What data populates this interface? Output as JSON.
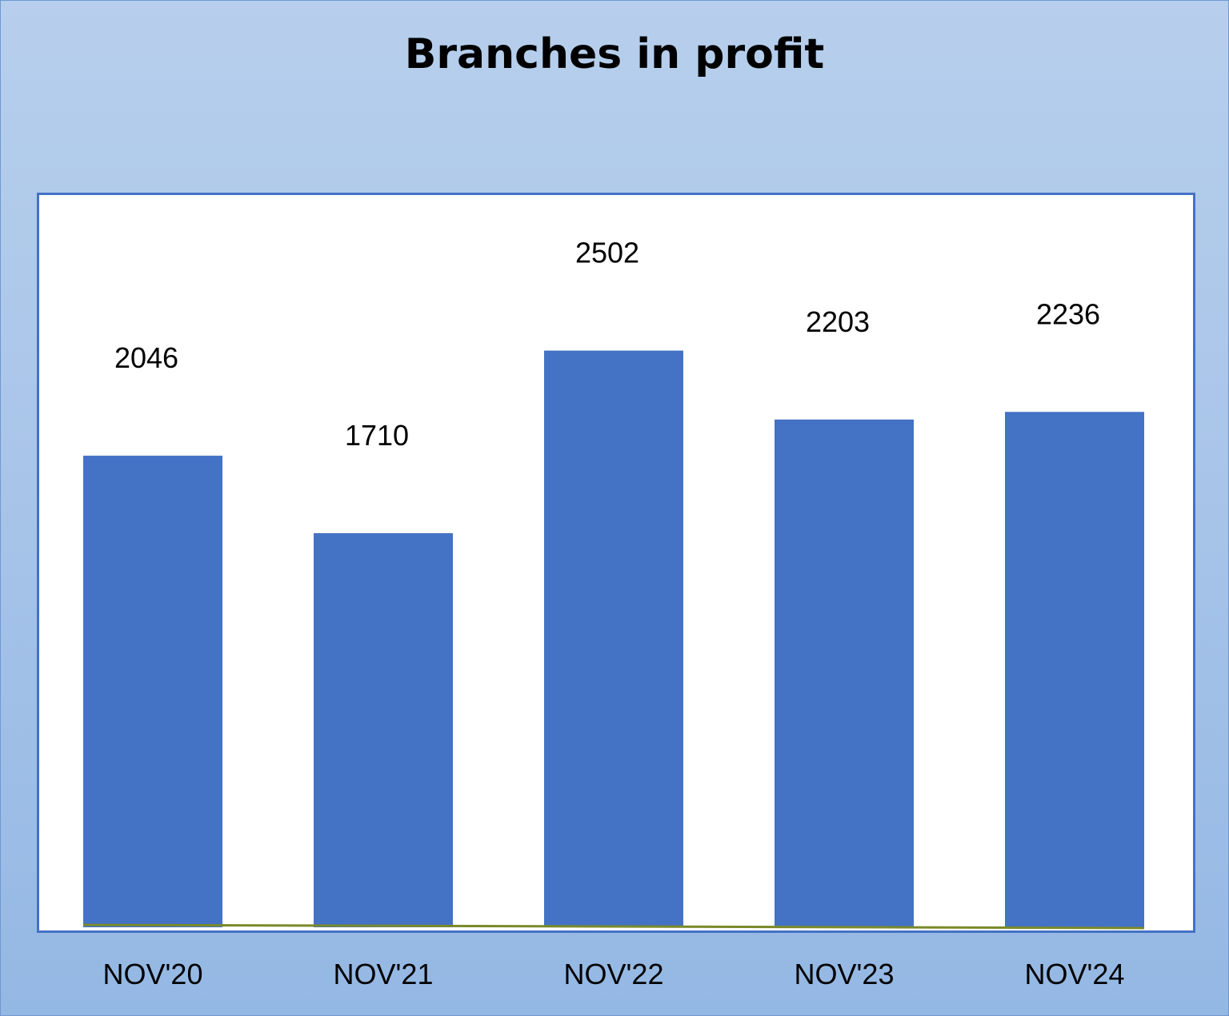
{
  "chart_data": {
    "type": "bar",
    "title": "Branches in profit",
    "categories": [
      "NOV'20",
      "NOV'21",
      "NOV'22",
      "NOV'23",
      "NOV'24"
    ],
    "values": [
      2046,
      1710,
      2502,
      2203,
      2236
    ],
    "data_labels": [
      "2046",
      "1710",
      "2502",
      "2203",
      "2236"
    ],
    "xlabel": "",
    "ylabel": "",
    "ylim": [
      0,
      3000
    ],
    "grid": false,
    "legend": "none",
    "colors": {
      "bar": "#4472c4",
      "plot_border": "#4472c4",
      "baseline": "#7a8a2a",
      "background_top": "#b7cfec",
      "background_bottom": "#94b8e4"
    }
  }
}
